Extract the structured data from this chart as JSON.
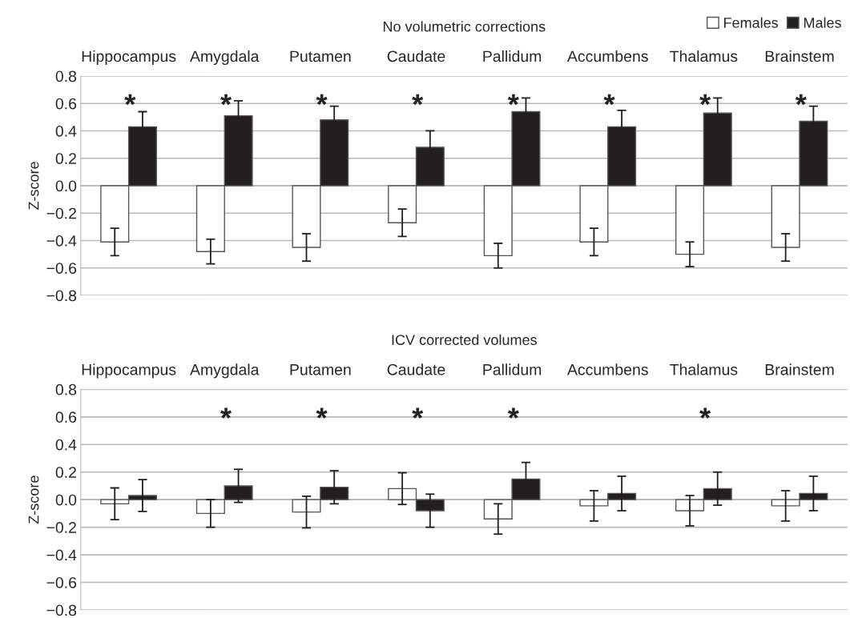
{
  "chart_data": [
    {
      "type": "bar",
      "title": "No volumetric corrections",
      "ylabel": "Z-score",
      "categories": [
        "Hippocampus",
        "Amygdala",
        "Putamen",
        "Caudate",
        "Pallidum",
        "Accumbens",
        "Thalamus",
        "Brainstem"
      ],
      "series": [
        {
          "name": "Females",
          "color": "#ffffff",
          "values": [
            -0.41,
            -0.48,
            -0.45,
            -0.27,
            -0.51,
            -0.41,
            -0.5,
            -0.45
          ],
          "errors": [
            0.1,
            0.09,
            0.1,
            0.1,
            0.09,
            0.1,
            0.09,
            0.1
          ]
        },
        {
          "name": "Males",
          "color": "#231f20",
          "values": [
            0.43,
            0.51,
            0.48,
            0.28,
            0.54,
            0.43,
            0.53,
            0.47
          ],
          "errors": [
            0.11,
            0.11,
            0.1,
            0.12,
            0.1,
            0.12,
            0.11,
            0.11
          ],
          "value_labels": [
            "*",
            "*",
            "*",
            "*",
            "*",
            "*",
            "*",
            "*"
          ]
        }
      ],
      "ylim": [
        -0.8,
        0.8
      ],
      "yticks": [
        {
          "value": -0.8,
          "label": "−0.8"
        },
        {
          "value": -0.6,
          "label": "−0.6"
        },
        {
          "value": -0.4,
          "label": "−0.4"
        },
        {
          "value": -0.2,
          "label": "−0.2"
        },
        {
          "value": 0,
          "label": "0.0"
        },
        {
          "value": 0.2,
          "label": "0.2"
        },
        {
          "value": 0.4,
          "label": "0.4"
        },
        {
          "value": 0.6,
          "label": "0.6"
        },
        {
          "value": 0.8,
          "label": "0.8"
        }
      ],
      "grid": "y",
      "legend": "top right"
    },
    {
      "type": "bar",
      "title": "ICV corrected volumes",
      "ylabel": "Z-score",
      "categories": [
        "Hippocampus",
        "Amygdala",
        "Putamen",
        "Caudate",
        "Pallidum",
        "Accumbens",
        "Thalamus",
        "Brainstem"
      ],
      "series": [
        {
          "color": "#ffffff",
          "values": [
            -0.03,
            -0.1,
            -0.09,
            0.08,
            -0.14,
            -0.045,
            -0.08,
            -0.045
          ],
          "errors": [
            0.115,
            0.1,
            0.115,
            0.115,
            0.11,
            0.11,
            0.11,
            0.11
          ]
        },
        {
          "color": "#231f20",
          "values": [
            0.03,
            0.1,
            0.09,
            -0.08,
            0.15,
            0.045,
            0.08,
            0.045
          ],
          "errors": [
            0.115,
            0.12,
            0.12,
            0.12,
            0.12,
            0.125,
            0.12,
            0.125
          ],
          "value_labels": [
            null,
            "*",
            "*",
            "*",
            "*",
            null,
            "*",
            null
          ]
        }
      ],
      "ylim": [
        -0.8,
        0.8
      ],
      "yticks": [
        {
          "value": -0.8,
          "label": "−0.8"
        },
        {
          "value": -0.6,
          "label": "−0.6"
        },
        {
          "value": -0.4,
          "label": "−0.4"
        },
        {
          "value": -0.2,
          "label": "−0.2"
        },
        {
          "value": 0,
          "label": "0.0"
        },
        {
          "value": 0.2,
          "label": "0.2"
        },
        {
          "value": 0.4,
          "label": "0.4"
        },
        {
          "value": 0.6,
          "label": "0.6"
        },
        {
          "value": 0.8,
          "label": "0.8"
        }
      ],
      "grid": "y"
    }
  ]
}
